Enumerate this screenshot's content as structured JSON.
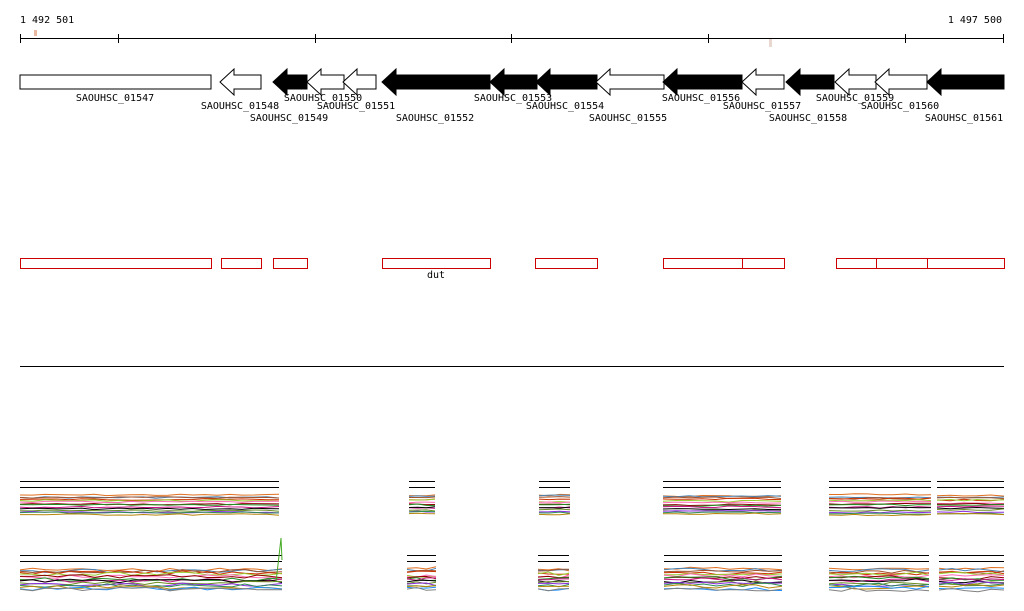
{
  "ruler": {
    "start_label": "1 492 501",
    "end_label": "1 497 500"
  },
  "genes": [
    {
      "id": "g1547",
      "label": "SAOUHSC_01547",
      "strand": "+",
      "fill": "white"
    },
    {
      "id": "g1548",
      "label": "SAOUHSC_01548",
      "strand": "-",
      "fill": "white"
    },
    {
      "id": "g1549",
      "label": "SAOUHSC_01549",
      "strand": "-",
      "fill": "black"
    },
    {
      "id": "g1550",
      "label": "SAOUHSC_01550",
      "strand": "-",
      "fill": "white"
    },
    {
      "id": "g1551",
      "label": "SAOUHSC_01551",
      "strand": "-",
      "fill": "white"
    },
    {
      "id": "g1552",
      "label": "SAOUHSC_01552",
      "strand": "-",
      "fill": "black"
    },
    {
      "id": "g1553",
      "label": "SAOUHSC_01553",
      "strand": "-",
      "fill": "black"
    },
    {
      "id": "g1554",
      "label": "SAOUHSC_01554",
      "strand": "-",
      "fill": "black"
    },
    {
      "id": "g1555",
      "label": "SAOUHSC_01555",
      "strand": "-",
      "fill": "white"
    },
    {
      "id": "g1556",
      "label": "SAOUHSC_01556",
      "strand": "-",
      "fill": "black"
    },
    {
      "id": "g1557",
      "label": "SAOUHSC_01557",
      "strand": "-",
      "fill": "white"
    },
    {
      "id": "g1558",
      "label": "SAOUHSC_01558",
      "strand": "-",
      "fill": "black"
    },
    {
      "id": "g1559",
      "label": "SAOUHSC_01559",
      "strand": "-",
      "fill": "white"
    },
    {
      "id": "g1560",
      "label": "SAOUHSC_01560",
      "strand": "-",
      "fill": "white"
    },
    {
      "id": "g1561",
      "label": "SAOUHSC_01561",
      "strand": "-",
      "fill": "black"
    }
  ],
  "annotations": [
    {
      "id": "a1",
      "label": ""
    },
    {
      "id": "a2",
      "label": ""
    },
    {
      "id": "a3",
      "label": ""
    },
    {
      "id": "a4",
      "label": "dut"
    },
    {
      "id": "a5",
      "label": ""
    },
    {
      "id": "a6",
      "label": ""
    },
    {
      "id": "a7",
      "label": ""
    },
    {
      "id": "a8",
      "label": ""
    },
    {
      "id": "a9",
      "label": ""
    },
    {
      "id": "a10",
      "label": ""
    }
  ],
  "colors": {
    "annotation_outline": "#cc0000",
    "ruler_marker": "#e8b8a0",
    "profile_palette": [
      "#000000",
      "#8b0000",
      "#cc3300",
      "#e07020",
      "#b8860b",
      "#6b8e23",
      "#228b22",
      "#9acd32",
      "#4682b4",
      "#1e90ff",
      "#8a2be2",
      "#c71585",
      "#ff69b4",
      "#a0522d",
      "#808080",
      "#2e8b57"
    ]
  }
}
